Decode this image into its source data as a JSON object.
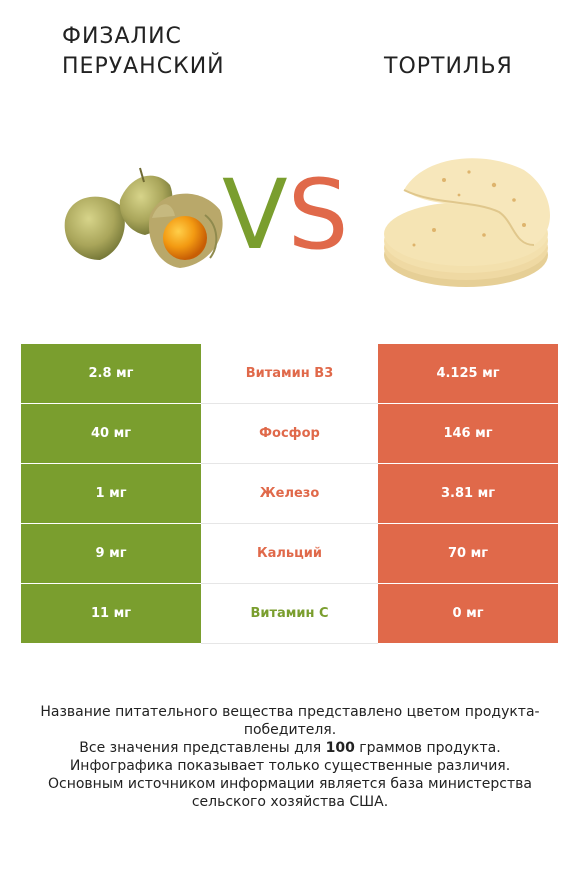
{
  "header": {
    "left_title": "Физалис перуанский",
    "right_title": "Тортилья",
    "vs_v": "V",
    "vs_s": "S"
  },
  "colors": {
    "green": "#7a9e2e",
    "red": "#e0694a"
  },
  "images": {
    "left": "physalis-fruit-image",
    "right": "tortilla-stack-image"
  },
  "rows": [
    {
      "left": "2.8 мг",
      "nutrient": "Витамин B3",
      "right": "4.125 мг",
      "winner": "right"
    },
    {
      "left": "40 мг",
      "nutrient": "Фосфор",
      "right": "146 мг",
      "winner": "right"
    },
    {
      "left": "1 мг",
      "nutrient": "Железо",
      "right": "3.81 мг",
      "winner": "right"
    },
    {
      "left": "9 мг",
      "nutrient": "Кальций",
      "right": "70 мг",
      "winner": "right"
    },
    {
      "left": "11 мг",
      "nutrient": "Витамин C",
      "right": "0 мг",
      "winner": "left"
    }
  ],
  "footer": {
    "line1": "Название питательного вещества представлено цветом продукта-победителя.",
    "line2_pre": "Все значения представлены для ",
    "line2_bold": "100",
    "line2_post": " граммов продукта.",
    "line3": "Инфографика показывает только существенные различия.",
    "line4": "Основным источником информации является база министерства сельского хозяйства США."
  }
}
